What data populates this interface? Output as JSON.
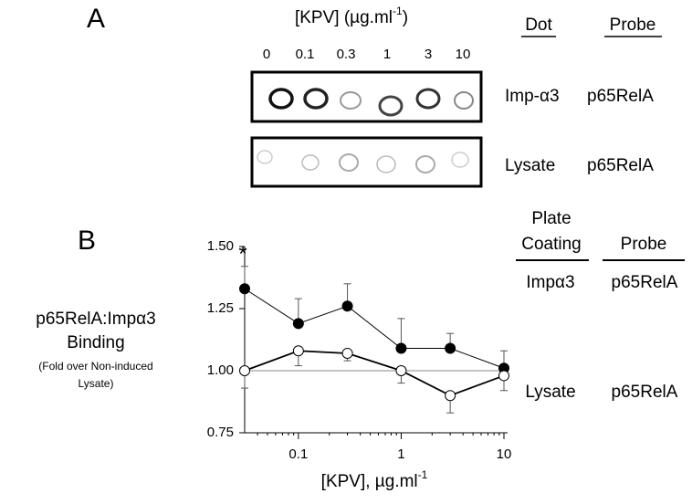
{
  "panel_a": {
    "label": "A",
    "title": "[KPV] (µg.ml",
    "title_sup": "-1",
    "title_end": ")",
    "concentrations": [
      "0",
      "0.1",
      "0.3",
      "1",
      "3",
      "10"
    ],
    "headers": [
      "Dot",
      "Probe"
    ],
    "rows": [
      [
        "Imp-α3",
        "p65RelA"
      ],
      [
        "Lysate",
        "p65RelA"
      ]
    ]
  },
  "chart_data": {
    "type": "line",
    "panel_label": "B",
    "y_label": [
      "p65RelA:Impα3",
      "Binding"
    ],
    "y_label_note": [
      "(Fold over Non-induced",
      "Lysate)"
    ],
    "x_label": "[KPV], µg.ml",
    "x_label_sup": "-1",
    "x": [
      0.03,
      0.1,
      0.3,
      1,
      3,
      10
    ],
    "log_x": true,
    "xlim": [
      0.03,
      10
    ],
    "xticks": [
      0.1,
      1,
      10
    ],
    "xminorticks": [
      0.04,
      0.05,
      0.06,
      0.07,
      0.08,
      0.09,
      0.2,
      0.3,
      0.4,
      0.5,
      0.6,
      0.7,
      0.8,
      0.9,
      2,
      3,
      4,
      5,
      6,
      7,
      8,
      9
    ],
    "ylim": [
      0.75,
      1.5
    ],
    "yticks": [
      {
        "value": 1.5,
        "label": "1.50"
      },
      {
        "value": 1.25,
        "label": "1.25"
      },
      {
        "value": 1.0,
        "label": "1.00"
      },
      {
        "value": 0.75,
        "label": "0.75"
      }
    ],
    "reference_line": 1.0,
    "series": [
      {
        "name": "Impα3",
        "color": "#000000",
        "marker": "filled",
        "error_direction": "up",
        "values": [
          1.33,
          1.19,
          1.26,
          1.09,
          1.09,
          1.01
        ],
        "errors": [
          0.09,
          0.1,
          0.09,
          0.12,
          0.06,
          0.07
        ]
      },
      {
        "name": "Lysate",
        "color": "#000000",
        "marker": "open",
        "error_direction": "down",
        "values": [
          1.0,
          1.08,
          1.07,
          1.0,
          0.9,
          0.98
        ],
        "errors": [
          0.07,
          0.06,
          0.03,
          0.05,
          0.07,
          0.06
        ]
      }
    ],
    "annotations": [
      {
        "text": "*",
        "series": 0,
        "index": 0
      }
    ],
    "legend": {
      "header_1": [
        "Plate",
        "Coating"
      ],
      "header_2": "Probe",
      "probes": [
        "p65RelA",
        "p65RelA"
      ]
    }
  }
}
